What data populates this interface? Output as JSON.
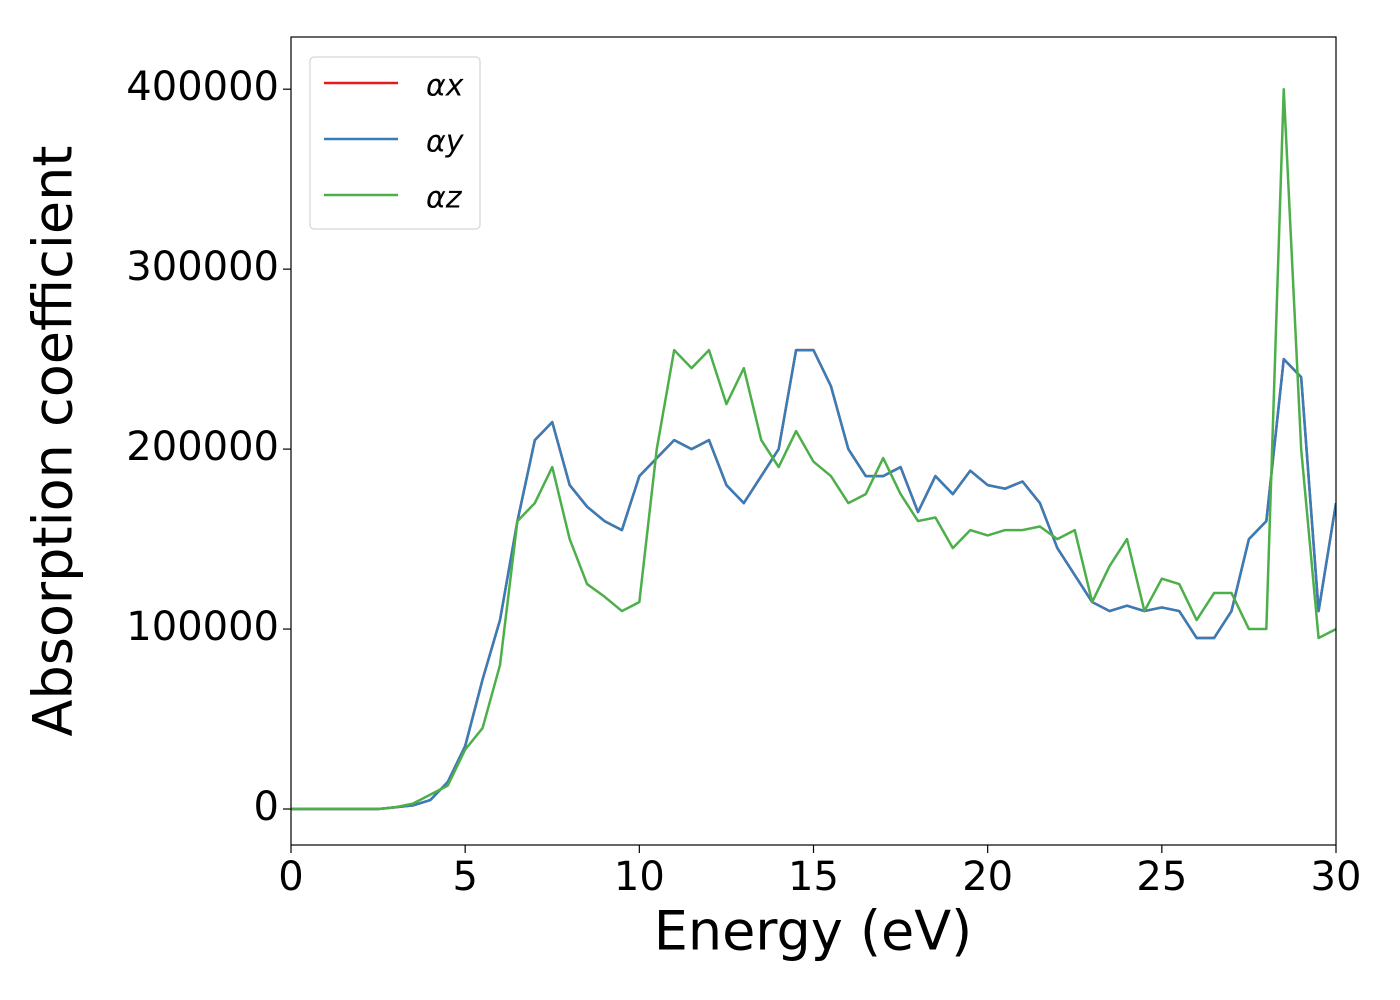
{
  "chart_data": {
    "type": "line",
    "xlabel": "Energy (eV)",
    "ylabel": "Absorption coefficient",
    "x": [
      0,
      0.5,
      1,
      1.5,
      2,
      2.5,
      3,
      3.5,
      4,
      4.5,
      5,
      5.5,
      6,
      6.5,
      7,
      7.5,
      8,
      8.5,
      9,
      9.5,
      10,
      10.5,
      11,
      11.5,
      12,
      12.5,
      13,
      13.5,
      14,
      14.5,
      15,
      15.5,
      16,
      16.5,
      17,
      17.5,
      18,
      18.5,
      19,
      19.5,
      20,
      20.5,
      21,
      21.5,
      22,
      22.5,
      23,
      23.5,
      24,
      24.5,
      25,
      25.5,
      26,
      26.5,
      27,
      27.5,
      28,
      28.5,
      29,
      29.5,
      30
    ],
    "series": [
      {
        "name": "αx",
        "color": "#e41a1c",
        "values": [
          0,
          0,
          0,
          0,
          0,
          0,
          1000,
          2000,
          5000,
          15000,
          35000,
          72000,
          105000,
          160000,
          205000,
          215000,
          180000,
          168000,
          160000,
          155000,
          185000,
          195000,
          205000,
          200000,
          205000,
          180000,
          170000,
          185000,
          200000,
          255000,
          255000,
          235000,
          200000,
          185000,
          185000,
          190000,
          165000,
          185000,
          175000,
          188000,
          180000,
          178000,
          182000,
          170000,
          145000,
          130000,
          115000,
          110000,
          113000,
          110000,
          112000,
          110000,
          95000,
          95000,
          110000,
          150000,
          160000,
          250000,
          240000,
          110000,
          170000
        ]
      },
      {
        "name": "αy",
        "color": "#377eb8",
        "values": [
          0,
          0,
          0,
          0,
          0,
          0,
          1000,
          2000,
          5000,
          15000,
          35000,
          72000,
          105000,
          160000,
          205000,
          215000,
          180000,
          168000,
          160000,
          155000,
          185000,
          195000,
          205000,
          200000,
          205000,
          180000,
          170000,
          185000,
          200000,
          255000,
          255000,
          235000,
          200000,
          185000,
          185000,
          190000,
          165000,
          185000,
          175000,
          188000,
          180000,
          178000,
          182000,
          170000,
          145000,
          130000,
          115000,
          110000,
          113000,
          110000,
          112000,
          110000,
          95000,
          95000,
          110000,
          150000,
          160000,
          250000,
          240000,
          110000,
          170000
        ]
      },
      {
        "name": "αz",
        "color": "#4daf4a",
        "values": [
          0,
          0,
          0,
          0,
          0,
          0,
          1000,
          3000,
          8000,
          13000,
          33000,
          45000,
          80000,
          160000,
          170000,
          190000,
          150000,
          125000,
          118000,
          110000,
          115000,
          200000,
          255000,
          245000,
          255000,
          225000,
          245000,
          205000,
          190000,
          210000,
          193000,
          185000,
          170000,
          175000,
          195000,
          175000,
          160000,
          162000,
          145000,
          155000,
          152000,
          155000,
          155000,
          157000,
          150000,
          155000,
          115000,
          135000,
          150000,
          110000,
          128000,
          125000,
          105000,
          120000,
          120000,
          100000,
          100000,
          400000,
          200000,
          95000,
          100000
        ]
      }
    ],
    "xlim": [
      0,
      30
    ],
    "ylim": [
      -20000,
      429000
    ],
    "xticks": [
      0,
      5,
      10,
      15,
      20,
      25,
      30
    ],
    "yticks": [
      0,
      100000,
      200000,
      300000,
      400000
    ],
    "grid": false,
    "legend": "upper-left"
  }
}
